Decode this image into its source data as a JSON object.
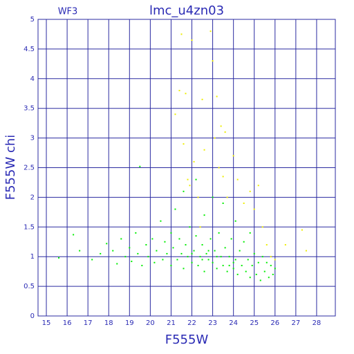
{
  "chart_data": {
    "type": "scatter",
    "title": "lmc_u4zn03",
    "subtitle": "WF3",
    "xlabel": "F555W",
    "ylabel": "F555W chi",
    "xlim": [
      14.6,
      28.9
    ],
    "ylim": [
      0,
      5
    ],
    "xticks": [
      15,
      16,
      17,
      18,
      19,
      20,
      21,
      22,
      23,
      24,
      25,
      26,
      27,
      28
    ],
    "yticks": [
      0,
      0.5,
      1,
      1.5,
      2,
      2.5,
      3,
      3.5,
      4,
      4.5,
      5
    ],
    "grid": true,
    "grid_color": "#2a2aa0",
    "series": [
      {
        "color": "#00ee00",
        "x": [
          15.6,
          16.3,
          16.6,
          17.2,
          17.6,
          17.9,
          18.2,
          18.4,
          18.6,
          18.8,
          19.0,
          19.1,
          19.3,
          19.4,
          19.5,
          19.6,
          19.8,
          19.9,
          20.1,
          20.2,
          20.3,
          20.5,
          20.6,
          20.7,
          20.8,
          21.0,
          21.0,
          21.1,
          21.2,
          21.3,
          21.4,
          21.5,
          21.6,
          21.6,
          21.7,
          21.8,
          21.9,
          22.0,
          22.1,
          22.2,
          22.2,
          22.3,
          22.4,
          22.5,
          22.6,
          22.6,
          22.7,
          22.8,
          22.9,
          23.0,
          23.0,
          23.1,
          23.2,
          23.3,
          23.4,
          23.5,
          23.5,
          23.6,
          23.7,
          23.8,
          23.9,
          24.0,
          24.1,
          24.1,
          24.2,
          24.3,
          24.4,
          24.5,
          24.6,
          24.7,
          24.8,
          24.8,
          24.9,
          25.0,
          25.1,
          25.2,
          25.3,
          25.4,
          25.5,
          25.6,
          25.7,
          25.8,
          25.9,
          26.0,
          22.5,
          23.2,
          22.0,
          24.0,
          23.8,
          22.8
        ],
        "values": [
          0.98,
          1.37,
          1.1,
          0.95,
          1.05,
          1.22,
          1.1,
          0.88,
          1.3,
          1.0,
          1.15,
          0.92,
          1.4,
          1.05,
          2.52,
          0.85,
          1.2,
          1.0,
          1.3,
          0.9,
          1.1,
          1.6,
          0.95,
          1.25,
          1.05,
          1.4,
          0.85,
          1.15,
          1.8,
          0.95,
          1.3,
          1.05,
          2.1,
          0.8,
          1.2,
          1.0,
          1.5,
          0.9,
          1.1,
          1.35,
          2.3,
          0.85,
          1.0,
          1.2,
          1.7,
          0.75,
          1.05,
          0.95,
          1.3,
          2.0,
          0.9,
          1.1,
          0.8,
          1.4,
          1.0,
          0.85,
          1.9,
          1.15,
          0.75,
          1.0,
          1.3,
          0.8,
          1.6,
          0.95,
          0.7,
          1.1,
          0.85,
          1.25,
          0.75,
          0.95,
          1.4,
          0.65,
          0.85,
          1.05,
          0.7,
          0.9,
          0.6,
          1.0,
          0.75,
          0.9,
          0.65,
          0.85,
          0.7,
          0.8,
          0.95,
          1.0,
          1.05,
          0.9,
          0.85,
          1.1
        ]
      },
      {
        "color": "#eeee00",
        "x": [
          21.2,
          21.4,
          21.5,
          21.6,
          21.7,
          21.8,
          22.0,
          22.1,
          22.3,
          22.5,
          22.6,
          22.9,
          23.0,
          23.1,
          23.2,
          23.3,
          23.4,
          23.5,
          23.6,
          23.7,
          24.0,
          24.2,
          24.5,
          24.8,
          25.0,
          25.2,
          25.4,
          25.6,
          25.8,
          26.0,
          26.5,
          27.3,
          27.5,
          22.4,
          21.9
        ],
        "values": [
          3.4,
          3.8,
          4.75,
          2.9,
          3.75,
          2.3,
          4.65,
          2.6,
          2.0,
          3.65,
          2.8,
          4.8,
          4.3,
          3.0,
          3.7,
          2.5,
          3.2,
          2.35,
          3.1,
          2.0,
          2.7,
          2.3,
          1.9,
          2.1,
          1.8,
          2.2,
          1.5,
          1.2,
          1.0,
          0.95,
          1.2,
          1.45,
          1.1,
          1.5,
          2.2
        ]
      }
    ]
  }
}
